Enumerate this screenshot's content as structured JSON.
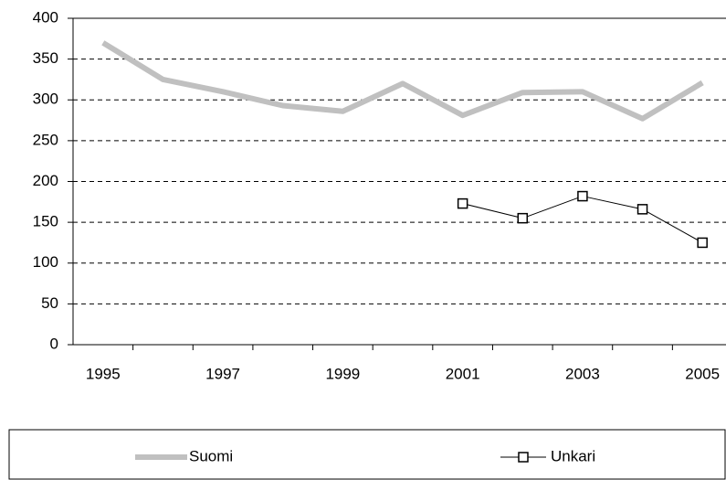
{
  "chart_data": {
    "type": "line",
    "categories": [
      "1995",
      null,
      "1997",
      null,
      "1999",
      null,
      "2001",
      null,
      "2003",
      null,
      "2005"
    ],
    "series": [
      {
        "name": "Suomi",
        "color": "#c0c0c0",
        "values": [
          370,
          325,
          310,
          293,
          286,
          320,
          281,
          309,
          310,
          277,
          321
        ]
      },
      {
        "name": "Unkari",
        "color": "#000000",
        "marker": "square",
        "values": [
          null,
          null,
          null,
          null,
          null,
          null,
          173,
          155,
          182,
          166,
          125
        ]
      }
    ],
    "ylim": [
      0,
      400
    ],
    "yticks": [
      0,
      50,
      100,
      150,
      200,
      250,
      300,
      350,
      400
    ],
    "grid": true,
    "legend": "bottom"
  }
}
